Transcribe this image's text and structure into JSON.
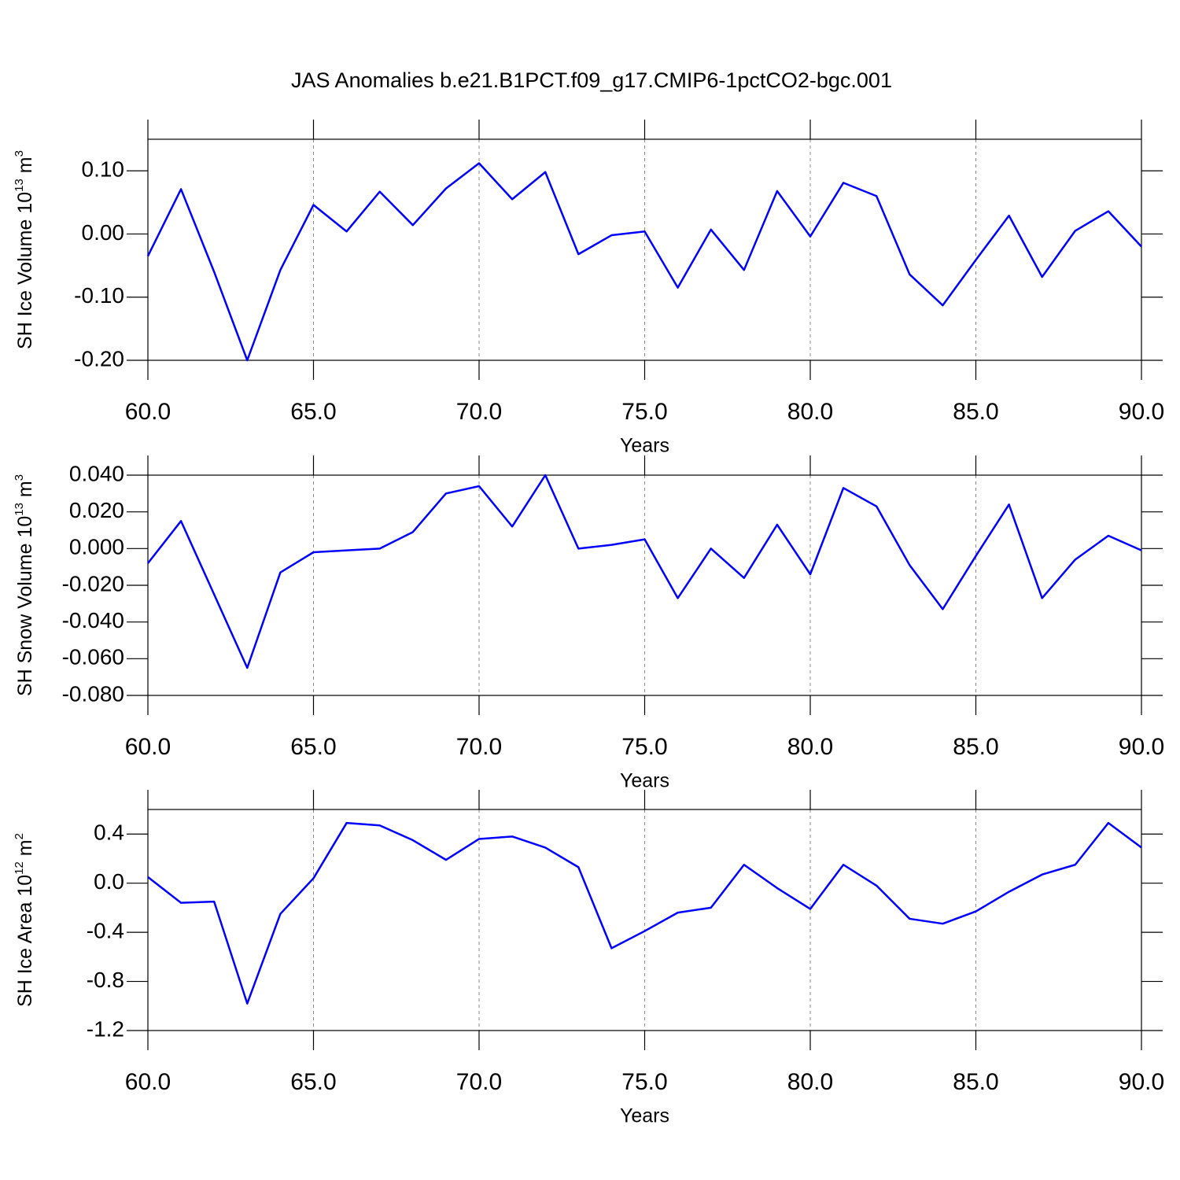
{
  "title": "JAS Anomalies b.e21.B1PCT.f09_g17.CMIP6-1pctCO2-bgc.001",
  "chart_data": [
    {
      "type": "line",
      "ylabel": [
        "SH Ice Volume 10",
        "13",
        " m",
        "3"
      ],
      "xlabel": "Years",
      "grid": true,
      "x": [
        60,
        61,
        62,
        63,
        64,
        65,
        66,
        67,
        68,
        69,
        70,
        71,
        72,
        73,
        74,
        75,
        76,
        77,
        78,
        79,
        80,
        81,
        82,
        83,
        84,
        85,
        86,
        87,
        88,
        89,
        90
      ],
      "series": [
        {
          "color": "#0000ff",
          "values": [
            -0.035,
            0.071,
            -0.06,
            -0.2,
            -0.057,
            0.046,
            0.004,
            0.067,
            0.014,
            0.072,
            0.112,
            0.055,
            0.098,
            -0.032,
            -0.002,
            0.004,
            -0.085,
            0.007,
            -0.057,
            0.068,
            -0.004,
            0.081,
            0.06,
            -0.064,
            -0.113,
            -0.041,
            0.029,
            -0.068,
            0.005,
            0.036,
            -0.02
          ]
        }
      ],
      "xlim": [
        60,
        90
      ],
      "xticks": [
        {
          "value": 60,
          "label": "60.0"
        },
        {
          "value": 65,
          "label": "65.0"
        },
        {
          "value": 70,
          "label": "70.0"
        },
        {
          "value": 75,
          "label": "75.0"
        },
        {
          "value": 80,
          "label": "80.0"
        },
        {
          "value": 85,
          "label": "85.0"
        },
        {
          "value": 90,
          "label": "90.0"
        }
      ],
      "ylim": [
        -0.2,
        0.15
      ],
      "yticks": [
        {
          "value": -0.2,
          "label": "-0.20"
        },
        {
          "value": -0.1,
          "label": "-0.10"
        },
        {
          "value": 0,
          "label": "0.00"
        },
        {
          "value": 0.1,
          "label": "0.10"
        }
      ]
    },
    {
      "type": "line",
      "ylabel": [
        "SH Snow Volume 10",
        "13",
        " m",
        "3"
      ],
      "xlabel": "Years",
      "grid": true,
      "x": [
        60,
        61,
        62,
        63,
        64,
        65,
        66,
        67,
        68,
        69,
        70,
        71,
        72,
        73,
        74,
        75,
        76,
        77,
        78,
        79,
        80,
        81,
        82,
        83,
        84,
        85,
        86,
        87,
        88,
        89,
        90
      ],
      "series": [
        {
          "color": "#0000ff",
          "values": [
            -0.008,
            0.015,
            -0.025,
            -0.065,
            -0.013,
            -0.002,
            -0.001,
            0.0,
            0.009,
            0.03,
            0.034,
            0.012,
            0.04,
            0.0,
            0.002,
            0.005,
            -0.027,
            0.0,
            -0.016,
            0.013,
            -0.014,
            0.033,
            0.023,
            -0.009,
            -0.033,
            -0.004,
            0.024,
            -0.027,
            -0.006,
            0.007,
            -0.001
          ]
        }
      ],
      "xlim": [
        60,
        90
      ],
      "xticks": [
        {
          "value": 60,
          "label": "60.0"
        },
        {
          "value": 65,
          "label": "65.0"
        },
        {
          "value": 70,
          "label": "70.0"
        },
        {
          "value": 75,
          "label": "75.0"
        },
        {
          "value": 80,
          "label": "80.0"
        },
        {
          "value": 85,
          "label": "85.0"
        },
        {
          "value": 90,
          "label": "90.0"
        }
      ],
      "ylim": [
        -0.08,
        0.04
      ],
      "yticks": [
        {
          "value": -0.08,
          "label": "-0.080"
        },
        {
          "value": -0.06,
          "label": "-0.060"
        },
        {
          "value": -0.04,
          "label": "-0.040"
        },
        {
          "value": -0.02,
          "label": "-0.020"
        },
        {
          "value": 0,
          "label": "0.000"
        },
        {
          "value": 0.02,
          "label": "0.020"
        },
        {
          "value": 0.04,
          "label": "0.040"
        }
      ]
    },
    {
      "type": "line",
      "ylabel": [
        "SH Ice Area 10",
        "12",
        " m",
        "2"
      ],
      "xlabel": "Years",
      "grid": true,
      "x": [
        60,
        61,
        62,
        63,
        64,
        65,
        66,
        67,
        68,
        69,
        70,
        71,
        72,
        73,
        74,
        75,
        76,
        77,
        78,
        79,
        80,
        81,
        82,
        83,
        84,
        85,
        86,
        87,
        88,
        89,
        90
      ],
      "series": [
        {
          "color": "#0000ff",
          "values": [
            0.05,
            -0.16,
            -0.15,
            -0.98,
            -0.25,
            0.04,
            0.49,
            0.47,
            0.35,
            0.19,
            0.36,
            0.38,
            0.29,
            0.13,
            -0.53,
            -0.39,
            -0.24,
            -0.2,
            0.15,
            -0.04,
            -0.21,
            0.15,
            -0.02,
            -0.29,
            -0.33,
            -0.23,
            -0.07,
            0.07,
            0.15,
            0.49,
            0.29
          ]
        }
      ],
      "xlim": [
        60,
        90
      ],
      "xticks": [
        {
          "value": 60,
          "label": "60.0"
        },
        {
          "value": 65,
          "label": "65.0"
        },
        {
          "value": 70,
          "label": "70.0"
        },
        {
          "value": 75,
          "label": "75.0"
        },
        {
          "value": 80,
          "label": "80.0"
        },
        {
          "value": 85,
          "label": "85.0"
        },
        {
          "value": 90,
          "label": "90.0"
        }
      ],
      "ylim": [
        -1.2,
        0.6
      ],
      "yticks": [
        -1.2,
        -0.8,
        -0.4,
        {
          "value": 0,
          "label": "0.0"
        },
        0.4
      ]
    }
  ]
}
